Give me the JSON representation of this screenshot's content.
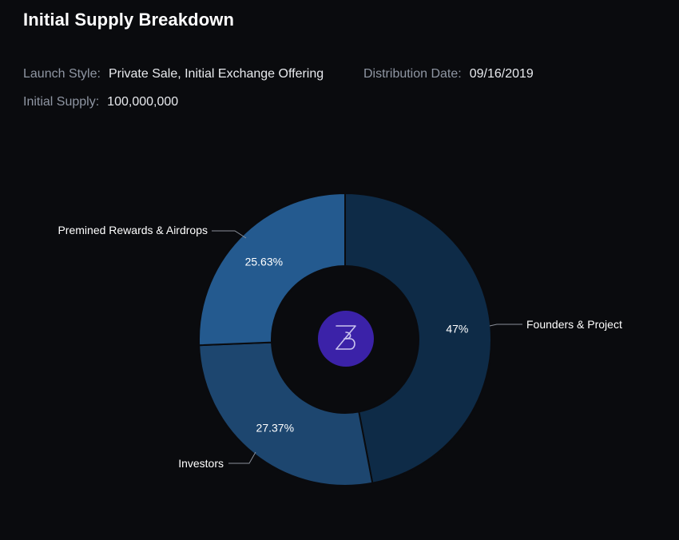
{
  "header": {
    "title": "Initial Supply Breakdown"
  },
  "meta": {
    "launch_style_label": "Launch Style:",
    "launch_style_value": "Private Sale, Initial Exchange Offering",
    "distribution_date_label": "Distribution Date:",
    "distribution_date_value": "09/16/2019",
    "initial_supply_label": "Initial Supply:",
    "initial_supply_value": "100,000,000"
  },
  "center_logo": {
    "icon": "band-protocol-logo",
    "color": "#3b22a8",
    "glyph_color": "#c9c3ee"
  },
  "colors": {
    "background": "#0a0b0e"
  },
  "chart_data": {
    "type": "pie",
    "donut": true,
    "title": "",
    "start_angle_deg": 0,
    "slices": [
      {
        "name": "Founders & Project",
        "value": 47,
        "label": "47%",
        "color": "#0e2b47"
      },
      {
        "name": "Investors",
        "value": 27.37,
        "label": "27.37%",
        "color": "#1d466f"
      },
      {
        "name": "Premined Rewards & Airdrops",
        "value": 25.63,
        "label": "25.63%",
        "color": "#245a8f"
      }
    ]
  }
}
